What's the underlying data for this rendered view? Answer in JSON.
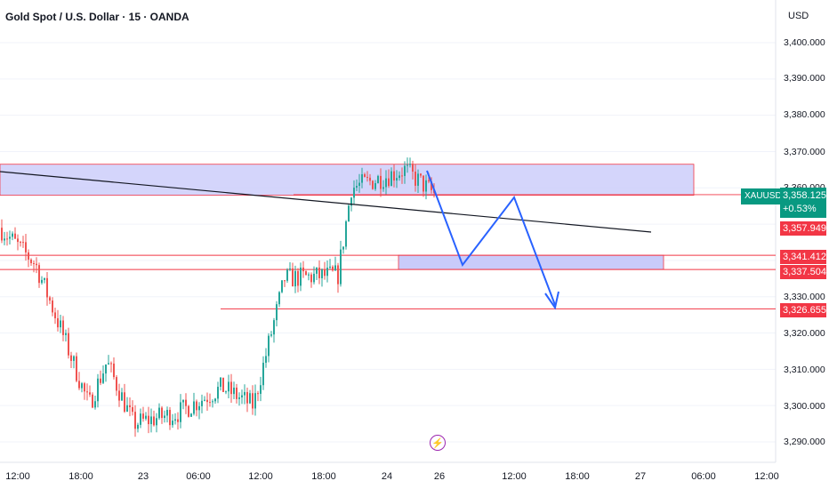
{
  "header": {
    "title": "Gold Spot / U.S. Dollar · 15 · OANDA",
    "currency": "USD"
  },
  "symbol": "XAUUSD",
  "price_axis": {
    "labels": [
      "3,400.000",
      "3,390.000",
      "3,380.000",
      "3,370.000",
      "3,360.000",
      "3,330.000",
      "3,320.000",
      "3,310.000",
      "3,300.000",
      "3,290.000"
    ]
  },
  "price_tags": {
    "last_price": "3,358.125",
    "change": "+0.53%",
    "zone_low": "3,357.949",
    "support_high": "3,341.412",
    "support_low": "3,337.504",
    "target": "3,326.655"
  },
  "time_axis": {
    "labels": [
      "12:00",
      "18:00",
      "23",
      "06:00",
      "12:00",
      "18:00",
      "24",
      "26",
      "12:00",
      "18:00",
      "27",
      "06:00",
      "12:00"
    ]
  },
  "colors": {
    "up": "#26a69a",
    "down": "#ef5350",
    "zone_fill": "#c9cbfa",
    "level_line": "#f23645",
    "projection": "#2962ff",
    "trendline": "#131722",
    "badge_green": "#089981"
  },
  "chart_data": {
    "type": "candlestick",
    "title": "Gold Spot / U.S. Dollar · 15 · OANDA",
    "y_axis": "price (USD)",
    "ylim": [
      3285,
      3408
    ],
    "last_price": 3358.125,
    "levels": [
      3357.949,
      3341.412,
      3337.504,
      3326.655
    ],
    "resistance_zone": [
      3357.949,
      3366.5
    ],
    "projection_path": [
      3363,
      3339,
      3361,
      3327
    ]
  }
}
